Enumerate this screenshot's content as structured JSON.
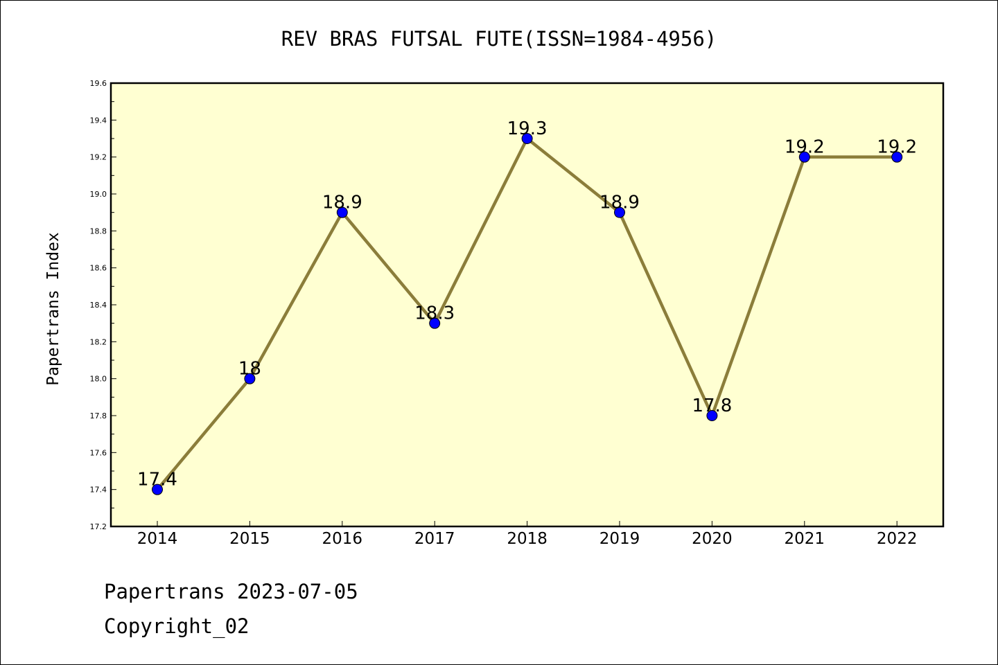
{
  "chart_data": {
    "type": "line",
    "title": "REV BRAS FUTSAL FUTE(ISSN=1984-4956)",
    "xlabel": "",
    "ylabel": "Papertrans Index",
    "categories": [
      "2014",
      "2015",
      "2016",
      "2017",
      "2018",
      "2019",
      "2020",
      "2021",
      "2022"
    ],
    "values": [
      17.4,
      18.0,
      18.9,
      18.3,
      19.3,
      18.9,
      17.8,
      19.2,
      19.2
    ],
    "data_labels": [
      "17.4",
      "18",
      "18.9",
      "18.3",
      "19.3",
      "18.9",
      "17.8",
      "19.2",
      "19.2"
    ],
    "ylim": [
      17.2,
      19.6
    ],
    "yticks": [
      "17.2",
      "17.4",
      "17.6",
      "17.8",
      "18.0",
      "18.2",
      "18.4",
      "18.6",
      "18.8",
      "19.0",
      "19.2",
      "19.4",
      "19.6"
    ],
    "grid": false,
    "colors": {
      "plot_background": "#ffffd2",
      "line": "#8b7d3a",
      "marker": "#0000ff"
    }
  },
  "footer": {
    "line1": "Papertrans 2023-07-05",
    "line2": "Copyright_02"
  }
}
